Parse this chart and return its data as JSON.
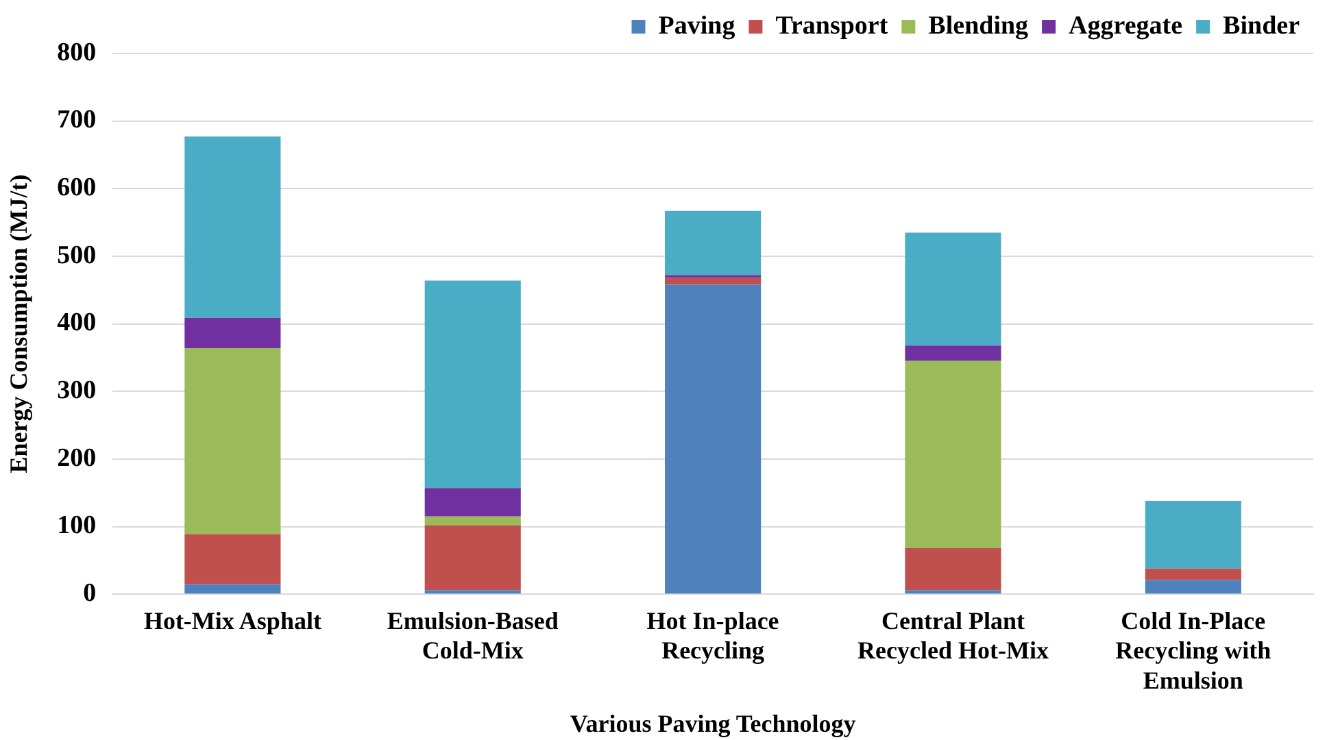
{
  "chart_data": {
    "type": "bar",
    "stacked": true,
    "xlabel": "Various Paving Technology",
    "ylabel": "Energy Consumption (MJ/t)",
    "categories": [
      "Hot-Mix Asphalt",
      "Emulsion-Based Cold-Mix",
      "Hot In-place Recycling",
      "Central Plant Recycled Hot-Mix",
      "Cold In-Place Recycling with Emulsion"
    ],
    "series": [
      {
        "name": "Paving",
        "color": "#4f81bd",
        "values": [
          15,
          6,
          458,
          6,
          21
        ]
      },
      {
        "name": "Transport",
        "color": "#c0504d",
        "values": [
          74,
          96,
          10,
          62,
          17
        ]
      },
      {
        "name": "Blending",
        "color": "#9bbb59",
        "values": [
          275,
          13,
          0,
          277,
          0
        ]
      },
      {
        "name": "Aggregate",
        "color": "#7030a0",
        "values": [
          45,
          42,
          4,
          23,
          0
        ]
      },
      {
        "name": "Binder",
        "color": "#4bacc6",
        "values": [
          268,
          307,
          95,
          167,
          100
        ]
      }
    ],
    "ylim": [
      0,
      800
    ],
    "yticks": [
      0,
      100,
      200,
      300,
      400,
      500,
      600,
      700,
      800
    ],
    "grid": "y",
    "legend": "top right"
  }
}
